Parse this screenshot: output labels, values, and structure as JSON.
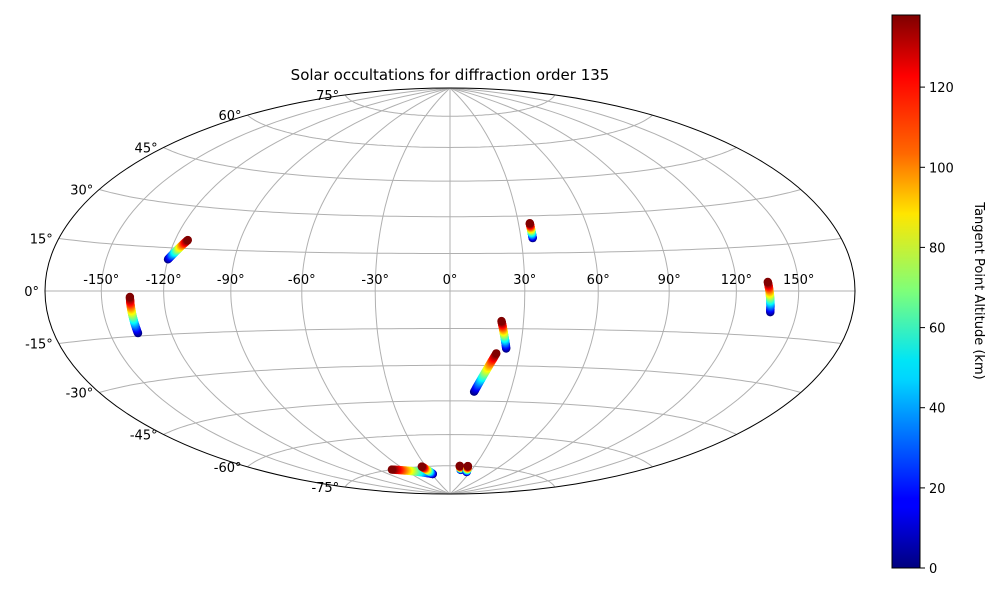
{
  "chart_data": {
    "type": "scatter",
    "projection": "hammer",
    "title": "Solar occultations for diffraction order 135",
    "grid": true,
    "lon_ticks": [
      "-150°",
      "-120°",
      "-90°",
      "-60°",
      "-30°",
      "0°",
      "30°",
      "60°",
      "90°",
      "120°",
      "150°"
    ],
    "lat_ticks": [
      "75°",
      "60°",
      "45°",
      "30°",
      "15°",
      "0°",
      "-15°",
      "-30°",
      "-45°",
      "-60°",
      "-75°"
    ],
    "colorbar": {
      "label": "Tangent Point Altitude (km)",
      "colormap": "jet",
      "range": [
        0,
        138
      ],
      "ticks": [
        "0",
        "20",
        "40",
        "60",
        "80",
        "100",
        "120"
      ]
    },
    "tracks": [
      {
        "lon_start": -120,
        "lat_start": 11,
        "alt_start": 0,
        "lon_end": -114,
        "lat_end": 18,
        "alt_end": 138
      },
      {
        "lon_start": -136,
        "lat_start": -14,
        "alt_start": 0,
        "lon_end": -136,
        "lat_end": -2,
        "alt_end": 138
      },
      {
        "lon_start": 35,
        "lat_start": 21,
        "alt_start": 0,
        "lon_end": 35,
        "lat_end": 27,
        "alt_end": 138
      },
      {
        "lon_start": 137,
        "lat_start": -7,
        "alt_start": 0,
        "lon_end": 135,
        "lat_end": 3,
        "alt_end": 138
      },
      {
        "lon_start": 24,
        "lat_start": -23,
        "alt_start": 0,
        "lon_end": 21,
        "lat_end": -12,
        "alt_end": 138
      },
      {
        "lon_start": 12,
        "lat_start": -41,
        "alt_start": 0,
        "lon_end": 20,
        "lat_end": -25,
        "alt_end": 138
      },
      {
        "lon_start": -28,
        "lat_start": -79,
        "alt_start": 0,
        "lon_end": -75,
        "lat_end": -75,
        "alt_end": 138
      },
      {
        "lon_start": -28,
        "lat_start": -79,
        "alt_start": 0,
        "lon_end": -35,
        "lat_end": -75,
        "alt_end": 138
      },
      {
        "lon_start": 15,
        "lat_start": -77,
        "alt_start": 0,
        "lon_end": 12,
        "lat_end": -75,
        "alt_end": 138
      },
      {
        "lon_start": 25,
        "lat_start": -78,
        "alt_start": 0,
        "lon_end": 22,
        "lat_end": -75,
        "alt_end": 138
      }
    ]
  }
}
